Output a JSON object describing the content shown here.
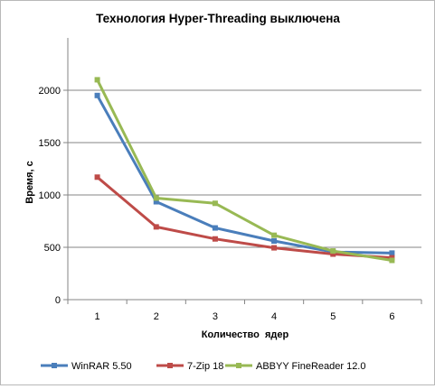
{
  "chart_data": {
    "type": "line",
    "title": "Технология Hyper-Threading выключена",
    "xlabel": "Количество  ядер",
    "ylabel": "Время, с",
    "categories": [
      "1",
      "2",
      "3",
      "4",
      "5",
      "6"
    ],
    "ylim": [
      0,
      2500
    ],
    "yticks": [
      0,
      500,
      1000,
      1500,
      2000
    ],
    "grid": "horizontal",
    "legend_position": "bottom",
    "series": [
      {
        "name": "WinRAR 5.50",
        "color": "#4a7ebb",
        "values": [
          1950,
          935,
          685,
          560,
          455,
          445
        ]
      },
      {
        "name": "7-Zip 18",
        "color": "#be4b48",
        "values": [
          1170,
          695,
          580,
          495,
          435,
          400
        ]
      },
      {
        "name": "ABBYY FineReader 12.0",
        "color": "#98b954",
        "values": [
          2100,
          970,
          920,
          615,
          465,
          375
        ]
      }
    ]
  }
}
